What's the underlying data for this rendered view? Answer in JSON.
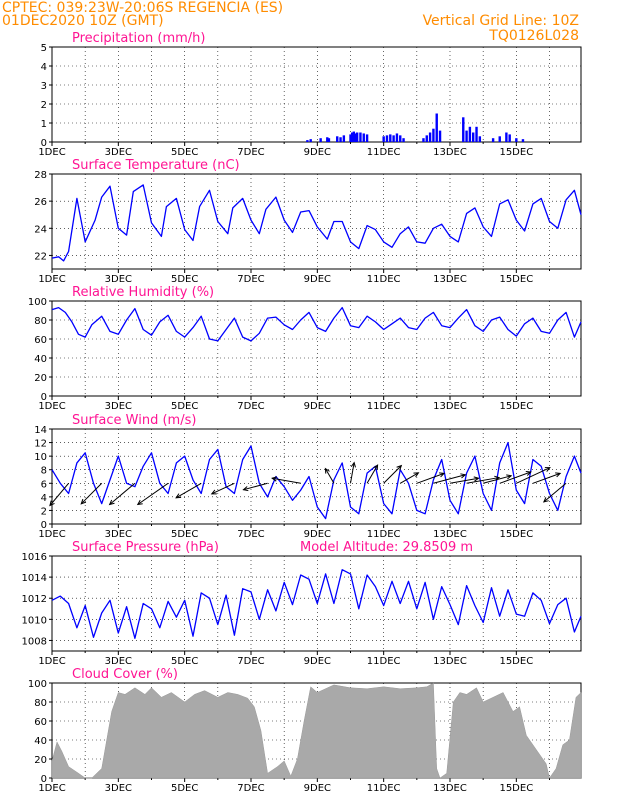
{
  "header": {
    "line1": "CPTEC:   039:23W-20:06S   REGENCIA (ES)",
    "line2": "01DEC2020 10Z (GMT)",
    "right1": "Vertical Grid Line: 10Z",
    "right2": "TQ0126L028"
  },
  "colors": {
    "header": "#ff8c00",
    "panel_title": "#ff1493",
    "series_line": "#0000ff",
    "precip_bar": "#0000ff",
    "cloud_fill": "#a9a9a9",
    "wind_arrow": "#000000"
  },
  "x_ticks": [
    "1DEC",
    "3DEC",
    "5DEC",
    "7DEC",
    "9DEC",
    "11DEC",
    "13DEC",
    "15DEC"
  ],
  "chart_data": [
    {
      "type": "bar",
      "title": "Precipitation (mm/h)",
      "ylim": [
        0,
        5
      ],
      "yticks": [
        "0",
        "1",
        "2",
        "3",
        "4",
        "5"
      ],
      "x_unit": "days since 1DEC 00Z",
      "x": [
        7.7,
        7.8,
        8.1,
        8.3,
        8.35,
        8.6,
        8.7,
        8.8,
        9.0,
        9.05,
        9.1,
        9.15,
        9.2,
        9.3,
        9.4,
        9.5,
        10.0,
        10.1,
        10.2,
        10.3,
        10.4,
        10.5,
        10.6,
        11.2,
        11.3,
        11.4,
        11.5,
        11.6,
        11.7,
        12.4,
        12.5,
        12.6,
        12.7,
        12.8,
        12.9,
        13.3,
        13.5,
        13.7,
        13.8,
        14.0,
        14.2
      ],
      "values": [
        0.1,
        0.15,
        0.2,
        0.25,
        0.2,
        0.3,
        0.25,
        0.35,
        0.4,
        0.5,
        0.55,
        0.45,
        0.5,
        0.5,
        0.45,
        0.4,
        0.3,
        0.35,
        0.4,
        0.35,
        0.45,
        0.35,
        0.2,
        0.2,
        0.35,
        0.5,
        0.7,
        1.5,
        0.6,
        1.3,
        0.6,
        0.8,
        0.5,
        0.8,
        0.3,
        0.2,
        0.3,
        0.5,
        0.4,
        0.2,
        0.15
      ]
    },
    {
      "type": "line",
      "title": "Surface Temperature (nC)",
      "ylim": [
        21,
        28
      ],
      "yticks": [
        "22",
        "24",
        "26",
        "28"
      ],
      "x_unit": "days since 1DEC 00Z",
      "x": [
        0.0,
        0.2,
        0.35,
        0.5,
        0.75,
        1.0,
        1.3,
        1.5,
        1.75,
        2.0,
        2.25,
        2.45,
        2.75,
        3.0,
        3.3,
        3.45,
        3.75,
        4.0,
        4.25,
        4.45,
        4.75,
        5.0,
        5.3,
        5.45,
        5.75,
        6.0,
        6.25,
        6.45,
        6.75,
        7.0,
        7.25,
        7.5,
        7.75,
        8.0,
        8.3,
        8.5,
        8.75,
        9.0,
        9.25,
        9.5,
        9.75,
        10.0,
        10.25,
        10.5,
        10.75,
        11.0,
        11.25,
        11.5,
        11.75,
        12.0,
        12.25,
        12.5,
        12.75,
        13.0,
        13.25,
        13.5,
        13.75,
        14.0,
        14.25,
        14.5,
        14.75,
        15.0,
        15.25,
        15.5,
        15.75,
        15.95
      ],
      "values": [
        21.8,
        21.9,
        21.6,
        22.3,
        26.2,
        23.0,
        24.6,
        26.3,
        27.1,
        24.0,
        23.5,
        26.7,
        27.2,
        24.4,
        23.4,
        25.6,
        26.2,
        23.9,
        23.1,
        25.6,
        26.8,
        24.5,
        23.6,
        25.5,
        26.2,
        24.6,
        23.6,
        25.4,
        26.3,
        24.6,
        23.7,
        25.2,
        25.3,
        24.1,
        23.2,
        24.5,
        24.5,
        23.0,
        22.5,
        24.2,
        23.9,
        23.0,
        22.6,
        23.6,
        24.1,
        23.0,
        22.9,
        24.0,
        24.3,
        23.4,
        23.0,
        25.1,
        25.5,
        24.1,
        23.4,
        25.8,
        26.1,
        24.6,
        23.8,
        25.8,
        26.2,
        24.5,
        24.0,
        26.1,
        26.8,
        25.0
      ]
    },
    {
      "type": "line",
      "title": "Relative Humidity (%)",
      "ylim": [
        0,
        100
      ],
      "yticks": [
        "0",
        "20",
        "40",
        "60",
        "80",
        "100"
      ],
      "x_unit": "days since 1DEC 00Z",
      "x": [
        0.0,
        0.2,
        0.4,
        0.6,
        0.8,
        1.0,
        1.2,
        1.5,
        1.75,
        2.0,
        2.25,
        2.5,
        2.75,
        3.0,
        3.25,
        3.5,
        3.75,
        4.0,
        4.25,
        4.5,
        4.75,
        5.0,
        5.25,
        5.5,
        5.75,
        6.0,
        6.25,
        6.5,
        6.75,
        7.0,
        7.25,
        7.5,
        7.75,
        8.0,
        8.25,
        8.5,
        8.75,
        9.0,
        9.25,
        9.5,
        9.75,
        10.0,
        10.25,
        10.5,
        10.75,
        11.0,
        11.25,
        11.5,
        11.75,
        12.0,
        12.25,
        12.5,
        12.75,
        13.0,
        13.25,
        13.5,
        13.75,
        14.0,
        14.25,
        14.5,
        14.75,
        15.0,
        15.25,
        15.5,
        15.75,
        15.95
      ],
      "values": [
        91,
        93,
        88,
        78,
        65,
        62,
        75,
        84,
        68,
        65,
        80,
        92,
        70,
        64,
        78,
        85,
        68,
        62,
        72,
        84,
        60,
        58,
        70,
        82,
        62,
        58,
        66,
        82,
        83,
        75,
        70,
        80,
        88,
        72,
        68,
        82,
        93,
        74,
        72,
        84,
        78,
        70,
        76,
        82,
        72,
        70,
        82,
        88,
        74,
        72,
        82,
        91,
        74,
        68,
        80,
        83,
        70,
        63,
        76,
        82,
        68,
        66,
        80,
        88,
        62,
        78
      ]
    },
    {
      "type": "line",
      "title": "Surface Wind (m/s)",
      "ylim": [
        0,
        14
      ],
      "yticks": [
        "0",
        "2",
        "4",
        "6",
        "8",
        "10",
        "12",
        "14"
      ],
      "x_unit": "days since 1DEC 00Z",
      "x": [
        0.0,
        0.25,
        0.5,
        0.75,
        1.0,
        1.25,
        1.5,
        1.75,
        2.0,
        2.25,
        2.5,
        2.75,
        3.0,
        3.25,
        3.5,
        3.75,
        4.0,
        4.25,
        4.5,
        4.75,
        5.0,
        5.25,
        5.5,
        5.75,
        6.0,
        6.25,
        6.5,
        6.75,
        7.0,
        7.25,
        7.5,
        7.75,
        8.0,
        8.25,
        8.5,
        8.75,
        9.0,
        9.25,
        9.5,
        9.75,
        10.0,
        10.25,
        10.5,
        10.75,
        11.0,
        11.25,
        11.5,
        11.75,
        12.0,
        12.25,
        12.5,
        12.75,
        13.0,
        13.25,
        13.5,
        13.75,
        14.0,
        14.25,
        14.5,
        14.75,
        15.0,
        15.25,
        15.5,
        15.75,
        15.95
      ],
      "values": [
        8.0,
        6.0,
        4.5,
        9.0,
        10.5,
        6.0,
        3.0,
        6.5,
        10.0,
        6.0,
        5.5,
        8.5,
        10.5,
        6.0,
        4.5,
        9.0,
        10.0,
        6.5,
        4.5,
        9.5,
        11.0,
        5.5,
        4.5,
        9.5,
        11.5,
        6.0,
        4.0,
        7.0,
        5.5,
        3.5,
        5.0,
        7.0,
        2.5,
        0.8,
        6.5,
        9.0,
        2.5,
        1.5,
        7.5,
        8.5,
        3.0,
        1.5,
        8.0,
        6.0,
        2.0,
        1.5,
        6.5,
        9.5,
        3.5,
        1.5,
        7.5,
        10.0,
        4.5,
        2.0,
        9.0,
        12.0,
        5.0,
        3.0,
        9.5,
        8.5,
        4.5,
        2.0,
        7.0,
        10.0,
        7.5
      ],
      "arrows": {
        "x": [
          0.5,
          1.5,
          2.5,
          3.5,
          4.5,
          5.5,
          6.5,
          7.5,
          8.5,
          9.0,
          9.5,
          10.0,
          10.5,
          11.0,
          11.5,
          12.0,
          12.5,
          13.0,
          13.5,
          14.0,
          14.5,
          15.5
        ],
        "angle_deg": [
          230,
          225,
          220,
          215,
          210,
          205,
          195,
          170,
          120,
          80,
          60,
          45,
          30,
          20,
          15,
          10,
          10,
          15,
          20,
          25,
          20,
          220
        ],
        "speed": [
          6,
          6,
          7,
          8,
          6,
          5,
          5,
          6,
          3,
          4,
          4,
          5,
          4,
          6,
          7,
          6,
          7,
          6,
          7,
          8,
          6,
          6
        ]
      }
    },
    {
      "type": "line",
      "title": "Surface Pressure (hPa)",
      "subtitle": "Model Altitude: 29.8509 m",
      "ylim": [
        1007,
        1016
      ],
      "yticks": [
        "1008",
        "1010",
        "1012",
        "1014",
        "1016"
      ],
      "x_unit": "days since 1DEC 00Z",
      "x": [
        0.0,
        0.25,
        0.5,
        0.75,
        1.0,
        1.25,
        1.5,
        1.75,
        2.0,
        2.25,
        2.5,
        2.75,
        3.0,
        3.25,
        3.5,
        3.75,
        4.0,
        4.25,
        4.5,
        4.75,
        5.0,
        5.25,
        5.5,
        5.75,
        6.0,
        6.25,
        6.5,
        6.75,
        7.0,
        7.25,
        7.5,
        7.75,
        8.0,
        8.25,
        8.5,
        8.75,
        9.0,
        9.25,
        9.5,
        9.75,
        10.0,
        10.25,
        10.5,
        10.75,
        11.0,
        11.25,
        11.5,
        11.75,
        12.0,
        12.25,
        12.5,
        12.75,
        13.0,
        13.25,
        13.5,
        13.75,
        14.0,
        14.25,
        14.5,
        14.75,
        15.0,
        15.25,
        15.5,
        15.75,
        15.95
      ],
      "values": [
        1011.8,
        1012.2,
        1011.5,
        1009.2,
        1011.3,
        1008.3,
        1010.6,
        1011.8,
        1008.7,
        1011.2,
        1008.2,
        1011.5,
        1011.0,
        1009.2,
        1011.7,
        1010.2,
        1011.8,
        1008.4,
        1012.5,
        1012.0,
        1009.5,
        1012.3,
        1008.5,
        1012.9,
        1012.6,
        1010.0,
        1012.8,
        1010.8,
        1013.5,
        1011.4,
        1014.2,
        1013.8,
        1011.5,
        1014.3,
        1011.5,
        1014.7,
        1014.3,
        1011.0,
        1014.2,
        1013.1,
        1011.3,
        1013.6,
        1011.5,
        1013.6,
        1011.0,
        1013.5,
        1010.0,
        1013.1,
        1011.4,
        1009.5,
        1013.2,
        1011.3,
        1009.7,
        1013.0,
        1010.3,
        1012.8,
        1010.5,
        1010.3,
        1012.5,
        1011.8,
        1009.6,
        1011.4,
        1012.0,
        1008.8,
        1010.3
      ]
    },
    {
      "type": "area",
      "title": "Cloud Cover (%)",
      "ylim": [
        0,
        100
      ],
      "yticks": [
        "0",
        "20",
        "40",
        "60",
        "80",
        "100"
      ],
      "x_unit": "days since 1DEC 00Z",
      "x": [
        0.0,
        0.15,
        0.3,
        0.5,
        0.8,
        1.0,
        1.2,
        1.5,
        1.8,
        2.0,
        2.2,
        2.5,
        2.8,
        3.0,
        3.3,
        3.6,
        4.0,
        4.3,
        4.6,
        5.0,
        5.3,
        5.6,
        5.9,
        6.1,
        6.3,
        6.5,
        6.8,
        7.0,
        7.2,
        7.4,
        7.6,
        7.8,
        8.0,
        8.5,
        9.0,
        9.5,
        10.0,
        10.5,
        11.0,
        11.3,
        11.5,
        11.6,
        11.7,
        11.9,
        12.1,
        12.3,
        12.5,
        12.8,
        13.0,
        13.3,
        13.6,
        13.9,
        14.1,
        14.3,
        14.6,
        14.9,
        15.0,
        15.2,
        15.4,
        15.6,
        15.8,
        15.95
      ],
      "values": [
        18,
        38,
        28,
        12,
        5,
        0,
        0,
        10,
        70,
        90,
        88,
        95,
        88,
        95,
        85,
        90,
        80,
        88,
        92,
        85,
        90,
        88,
        84,
        75,
        50,
        5,
        12,
        18,
        2,
        20,
        60,
        96,
        90,
        98,
        95,
        94,
        96,
        94,
        95,
        96,
        100,
        10,
        0,
        5,
        80,
        90,
        88,
        95,
        80,
        85,
        90,
        70,
        75,
        45,
        30,
        15,
        0,
        10,
        35,
        40,
        85,
        90
      ]
    }
  ]
}
